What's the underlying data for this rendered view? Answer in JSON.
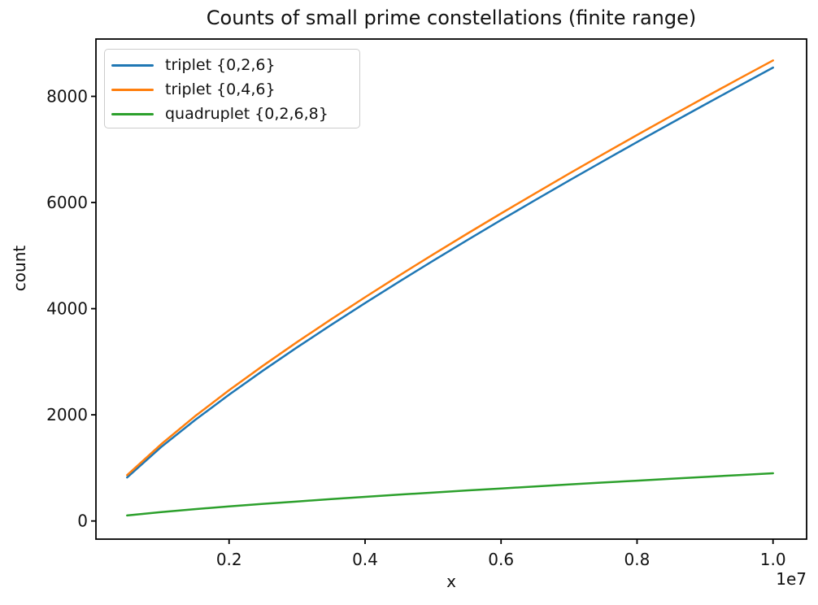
{
  "chart_data": {
    "type": "line",
    "title": "Counts of small prime constellations (finite range)",
    "xlabel": "x",
    "ylabel": "count",
    "x_axis_offset_label": "1e7",
    "x": [
      500000,
      1000000,
      1500000,
      2000000,
      2500000,
      3000000,
      3500000,
      4000000,
      4500000,
      5000000,
      5500000,
      6000000,
      6500000,
      7000000,
      7500000,
      8000000,
      8500000,
      9000000,
      9500000,
      10000000
    ],
    "series": [
      {
        "name": "triplet {0,2,6}",
        "color": "#1f77b4",
        "values": [
          820,
          1393,
          1902,
          2379,
          2834,
          3271,
          3694,
          4106,
          4508,
          4902,
          5289,
          5669,
          6043,
          6413,
          6778,
          7139,
          7495,
          7847,
          8196,
          8543
        ]
      },
      {
        "name": "triplet {0,4,6}",
        "color": "#ff7f0e",
        "values": [
          863,
          1444,
          1975,
          2463,
          2926,
          3370,
          3799,
          4216,
          4623,
          5021,
          5411,
          5794,
          6171,
          6543,
          6909,
          7272,
          7629,
          7983,
          8332,
          8677
        ]
      },
      {
        "name": "quadruplet {0,2,6,8}",
        "color": "#2ca02c",
        "values": [
          104,
          166,
          224,
          275,
          323,
          368,
          412,
          455,
          496,
          536,
          575,
          613,
          651,
          688,
          724,
          760,
          796,
          830,
          865,
          899
        ]
      }
    ],
    "xticks": {
      "values": [
        2000000,
        4000000,
        6000000,
        8000000,
        10000000
      ],
      "labels": [
        "0.2",
        "0.4",
        "0.6",
        "0.8",
        "1.0"
      ]
    },
    "yticks": {
      "values": [
        0,
        2000,
        4000,
        6000,
        8000
      ],
      "labels": [
        "0",
        "2000",
        "4000",
        "6000",
        "8000"
      ]
    },
    "xlim": [
      42000,
      10494000
    ],
    "ylim": [
      -342,
      9080
    ],
    "grid": false,
    "legend": {
      "position": "upper left",
      "entries": [
        "triplet {0,2,6}",
        "triplet {0,4,6}",
        "quadruplet {0,2,6,8}"
      ]
    },
    "axis_color": "#000000",
    "text_color": "#111111"
  }
}
